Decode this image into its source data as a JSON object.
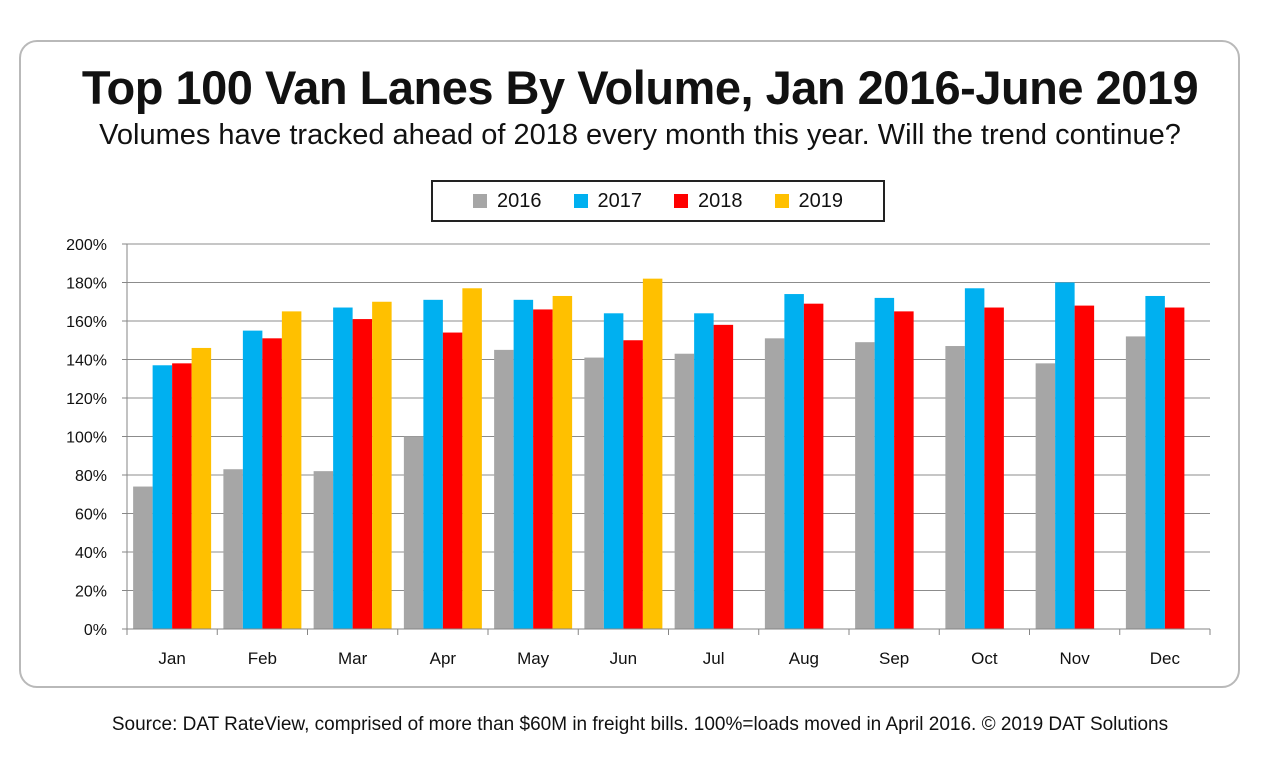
{
  "title": "Top 100 Van Lanes By Volume, Jan 2016-June 2019",
  "subtitle": "Volumes have tracked ahead of 2018 every month this year. Will the trend continue?",
  "source": "Source: DAT RateView, comprised of more than $60M in freight bills. 100%=loads moved in April 2016. © 2019 DAT Solutions",
  "chart_data": {
    "type": "bar",
    "title": "Top 100 Van Lanes By Volume, Jan 2016-June 2019",
    "categories": [
      "Jan",
      "Feb",
      "Mar",
      "Apr",
      "May",
      "Jun",
      "Jul",
      "Aug",
      "Sep",
      "Oct",
      "Nov",
      "Dec"
    ],
    "ylim": [
      0,
      200
    ],
    "yticks": [
      "0%",
      "20%",
      "40%",
      "60%",
      "80%",
      "100%",
      "120%",
      "140%",
      "160%",
      "180%",
      "200%"
    ],
    "grid": true,
    "legend_position": "top",
    "series": [
      {
        "name": "2016",
        "color": "#a6a6a6",
        "values": [
          74,
          83,
          82,
          100,
          145,
          141,
          143,
          151,
          149,
          147,
          138,
          152
        ]
      },
      {
        "name": "2017",
        "color": "#00b0f0",
        "values": [
          137,
          155,
          167,
          171,
          171,
          164,
          164,
          174,
          172,
          177,
          180,
          173
        ]
      },
      {
        "name": "2018",
        "color": "#ff0000",
        "values": [
          138,
          151,
          161,
          154,
          166,
          150,
          158,
          169,
          165,
          167,
          168,
          167
        ]
      },
      {
        "name": "2019",
        "color": "#ffc000",
        "values": [
          146,
          165,
          170,
          177,
          173,
          182,
          null,
          null,
          null,
          null,
          null,
          null
        ]
      }
    ]
  }
}
